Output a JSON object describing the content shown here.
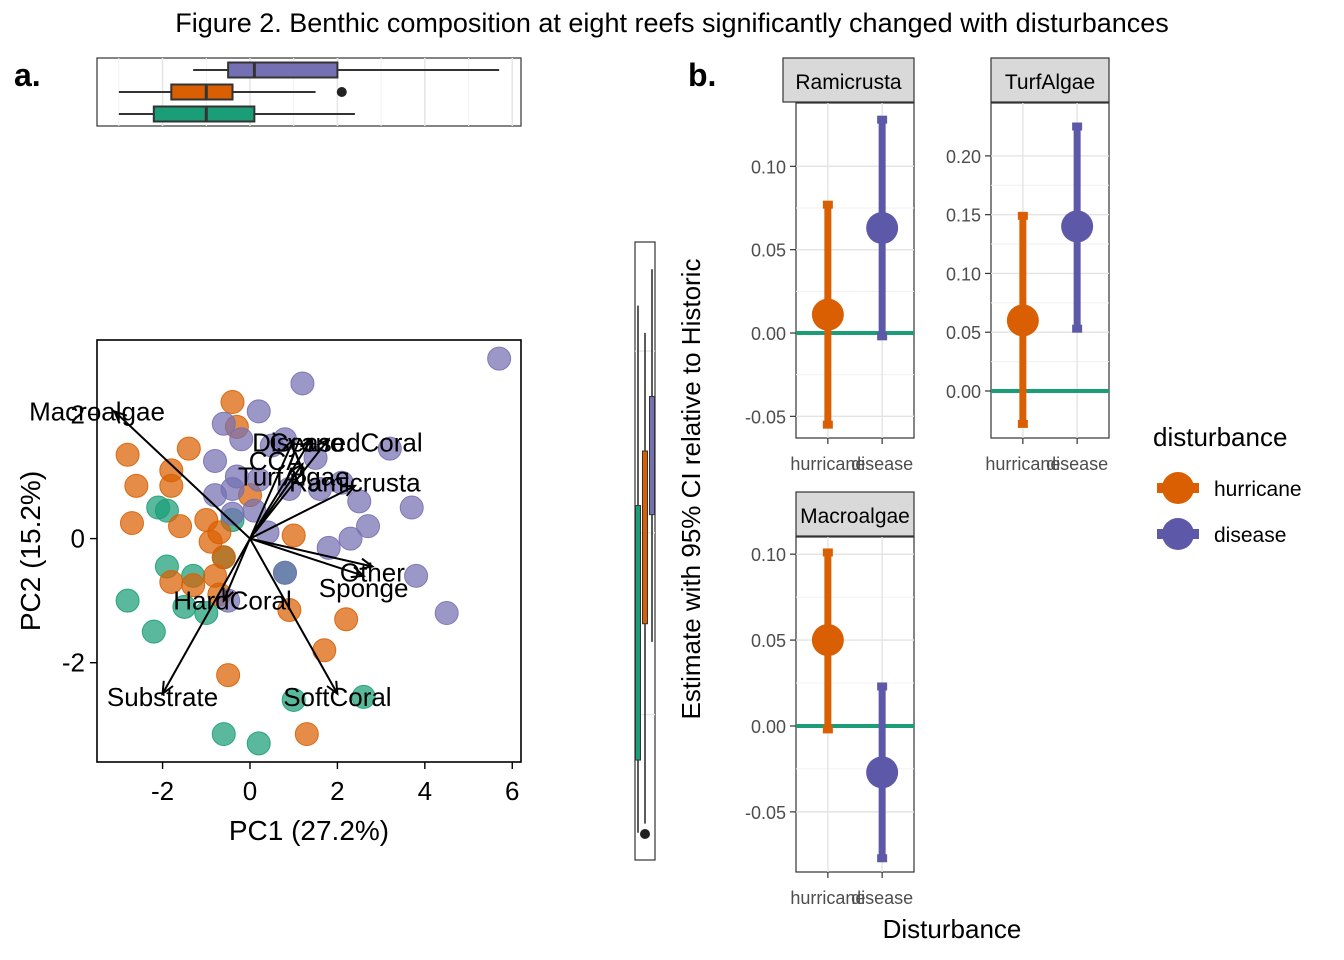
{
  "figure": {
    "title": "Figure 2. Benthic composition at eight reefs significantly changed with disturbances",
    "panel_a_label": "a.",
    "panel_b_label": "b."
  },
  "colors": {
    "historic": "#1b9e77",
    "hurricane": "#d95f02",
    "disease": "#7570b3",
    "disease_ci": "#5e58a8"
  },
  "chart_data": [
    {
      "type": "scatter",
      "xlabel": "PC1 (27.2%)",
      "ylabel": "PC2 (15.2%)",
      "xlim": [
        -3.5,
        6.2
      ],
      "ylim": [
        -3.6,
        3.2
      ],
      "xticks": [
        "-2",
        "0",
        "2",
        "4",
        "6"
      ],
      "yticks": [
        "-2",
        "0",
        "2"
      ],
      "grid": false,
      "groups": [
        "historic",
        "hurricane",
        "disease"
      ],
      "points": {
        "hurricane": [
          [
            -2.8,
            1.35
          ],
          [
            -2.6,
            0.85
          ],
          [
            -2.7,
            0.25
          ],
          [
            -1.8,
            1.1
          ],
          [
            -1.8,
            0.85
          ],
          [
            -1.4,
            1.45
          ],
          [
            -0.4,
            2.2
          ],
          [
            -0.3,
            1.8
          ],
          [
            -1.6,
            0.2
          ],
          [
            -1.0,
            0.3
          ],
          [
            -0.9,
            -0.05
          ],
          [
            -0.7,
            0.1
          ],
          [
            -0.6,
            -0.3
          ],
          [
            -0.8,
            -0.6
          ],
          [
            -1.8,
            -0.7
          ],
          [
            -1.3,
            -0.75
          ],
          [
            -0.7,
            -0.9
          ],
          [
            -0.5,
            -2.2
          ],
          [
            1.0,
            0.05
          ],
          [
            0.9,
            -1.15
          ],
          [
            1.7,
            -1.8
          ],
          [
            2.2,
            -1.3
          ],
          [
            1.3,
            -3.15
          ],
          [
            0.0,
            0.7
          ]
        ],
        "historic": [
          [
            -2.8,
            -1.0
          ],
          [
            -2.2,
            -1.5
          ],
          [
            -2.1,
            0.5
          ],
          [
            -1.9,
            0.45
          ],
          [
            -1.9,
            -0.45
          ],
          [
            -1.5,
            -1.1
          ],
          [
            -1.3,
            -0.6
          ],
          [
            -1.0,
            -1.2
          ],
          [
            -0.6,
            -0.3
          ],
          [
            -0.4,
            0.3
          ],
          [
            0.8,
            -0.55
          ],
          [
            1.0,
            -2.6
          ],
          [
            2.6,
            -2.55
          ],
          [
            -0.6,
            -3.15
          ],
          [
            0.2,
            -3.3
          ]
        ],
        "disease": [
          [
            5.7,
            2.9
          ],
          [
            1.2,
            2.5
          ],
          [
            0.2,
            2.05
          ],
          [
            -0.6,
            1.85
          ],
          [
            -0.2,
            1.6
          ],
          [
            0.5,
            1.5
          ],
          [
            0.8,
            1.6
          ],
          [
            1.5,
            1.3
          ],
          [
            -0.8,
            1.25
          ],
          [
            -0.3,
            1.0
          ],
          [
            0.2,
            0.95
          ],
          [
            0.9,
            0.8
          ],
          [
            1.6,
            0.8
          ],
          [
            2.1,
            0.9
          ],
          [
            2.5,
            0.6
          ],
          [
            -0.8,
            0.7
          ],
          [
            -0.4,
            0.8
          ],
          [
            0.1,
            0.45
          ],
          [
            -0.4,
            0.4
          ],
          [
            2.7,
            0.2
          ],
          [
            2.3,
            0.0
          ],
          [
            1.8,
            -0.15
          ],
          [
            3.2,
            1.45
          ],
          [
            3.7,
            0.5
          ],
          [
            3.8,
            -0.6
          ],
          [
            4.5,
            -1.2
          ],
          [
            0.8,
            -0.55
          ],
          [
            -0.5,
            -1.0
          ],
          [
            0.4,
            0.1
          ]
        ]
      },
      "vectors": [
        {
          "label": "Macroalgae",
          "x": -3.1,
          "y": 2.05,
          "label_x": -3.5,
          "label_y": 2.05
        },
        {
          "label": "Substrate",
          "x": -2.0,
          "y": -2.5,
          "label_x": -2.0,
          "label_y": -2.55
        },
        {
          "label": "HardCoral",
          "x": -0.6,
          "y": -1.0,
          "label_x": -0.4,
          "label_y": -1.0
        },
        {
          "label": "SoftCoral",
          "x": 2.0,
          "y": -2.5,
          "label_x": 2.0,
          "label_y": -2.55
        },
        {
          "label": "Sponge",
          "x": 2.6,
          "y": -0.6,
          "label_x": 2.6,
          "label_y": -0.8
        },
        {
          "label": "Other",
          "x": 2.8,
          "y": -0.45,
          "label_x": 2.8,
          "label_y": -0.55
        },
        {
          "label": "Ramicrusta",
          "x": 2.4,
          "y": 0.85,
          "label_x": 2.4,
          "label_y": 0.9
        },
        {
          "label": "TurfAlgae",
          "x": 1.2,
          "y": 1.2,
          "label_x": 1.0,
          "label_y": 1.0
        },
        {
          "label": "CCA",
          "x": 1.0,
          "y": 1.6,
          "label_x": 0.6,
          "label_y": 1.25
        },
        {
          "label": "DiseasedCoral",
          "x": 1.8,
          "y": 1.6,
          "label_x": 2.0,
          "label_y": 1.55
        },
        {
          "label": "Cyano",
          "x": 1.4,
          "y": 1.6,
          "label_x": 1.3,
          "label_y": 1.55
        }
      ]
    },
    {
      "type": "box",
      "orientation": "horizontal",
      "axis": "PC1",
      "xlim": [
        -3.5,
        6.2
      ],
      "boxes": [
        {
          "group": "disease",
          "whisker_low": -1.3,
          "q1": -0.5,
          "median": 0.1,
          "q3": 2.0,
          "whisker_high": 5.7,
          "outliers": []
        },
        {
          "group": "hurricane",
          "whisker_low": -3.0,
          "q1": -1.8,
          "median": -1.0,
          "q3": -0.4,
          "whisker_high": 1.5,
          "outliers": [
            2.1
          ]
        },
        {
          "group": "historic",
          "whisker_low": -3.0,
          "q1": -2.2,
          "median": -1.0,
          "q3": 0.1,
          "whisker_high": 2.4,
          "outliers": []
        }
      ]
    },
    {
      "type": "box",
      "orientation": "vertical",
      "axis": "PC2",
      "ylim": [
        -3.6,
        3.2
      ],
      "boxes": [
        {
          "group": "historic",
          "whisker_low": -3.3,
          "q1": -2.5,
          "median": -1.2,
          "q3": 0.3,
          "whisker_high": 2.5,
          "outliers": []
        },
        {
          "group": "hurricane",
          "whisker_low": -3.2,
          "q1": -1.0,
          "median": -0.3,
          "q3": 0.9,
          "whisker_high": 2.2,
          "outliers": [
            -3.6
          ]
        },
        {
          "group": "disease",
          "whisker_low": -1.2,
          "q1": 0.2,
          "median": 0.8,
          "q3": 1.5,
          "whisker_high": 2.9,
          "outliers": []
        }
      ]
    },
    {
      "type": "errorbar",
      "ylabel": "Estimate with 95% CI relative to Historic",
      "xlabel": "Disturbance",
      "categories": [
        "hurricane",
        "disease"
      ],
      "category_labels": [
        "hurricane",
        "disease"
      ],
      "legend": {
        "title": "disturbance",
        "position": "right",
        "entries": [
          "hurricane",
          "disease"
        ]
      },
      "reference_line": 0,
      "facets": [
        {
          "name": "Ramicrusta",
          "ylim": [
            -0.063,
            0.138
          ],
          "yticks": [
            "-0.05",
            "0.00",
            "0.05",
            "0.10"
          ],
          "tick_values": [
            -0.05,
            0,
            0.05,
            0.1
          ],
          "points": [
            {
              "category": "hurricane",
              "estimate": 0.011,
              "low": -0.055,
              "high": 0.077
            },
            {
              "category": "disease",
              "estimate": 0.063,
              "low": -0.002,
              "high": 0.128
            }
          ]
        },
        {
          "name": "TurfAlgae",
          "ylim": [
            -0.04,
            0.245
          ],
          "yticks": [
            "0.00",
            "0.05",
            "0.10",
            "0.15",
            "0.20"
          ],
          "tick_values": [
            0,
            0.05,
            0.1,
            0.15,
            0.2
          ],
          "points": [
            {
              "category": "hurricane",
              "estimate": 0.06,
              "low": -0.028,
              "high": 0.149
            },
            {
              "category": "disease",
              "estimate": 0.14,
              "low": 0.053,
              "high": 0.225
            }
          ]
        },
        {
          "name": "Macroalgae",
          "ylim": [
            -0.085,
            0.11
          ],
          "yticks": [
            "-0.05",
            "0.00",
            "0.05",
            "0.10"
          ],
          "tick_values": [
            -0.05,
            0,
            0.05,
            0.1
          ],
          "points": [
            {
              "category": "hurricane",
              "estimate": 0.05,
              "low": -0.002,
              "high": 0.101
            },
            {
              "category": "disease",
              "estimate": -0.027,
              "low": -0.077,
              "high": 0.023
            }
          ]
        }
      ]
    }
  ]
}
